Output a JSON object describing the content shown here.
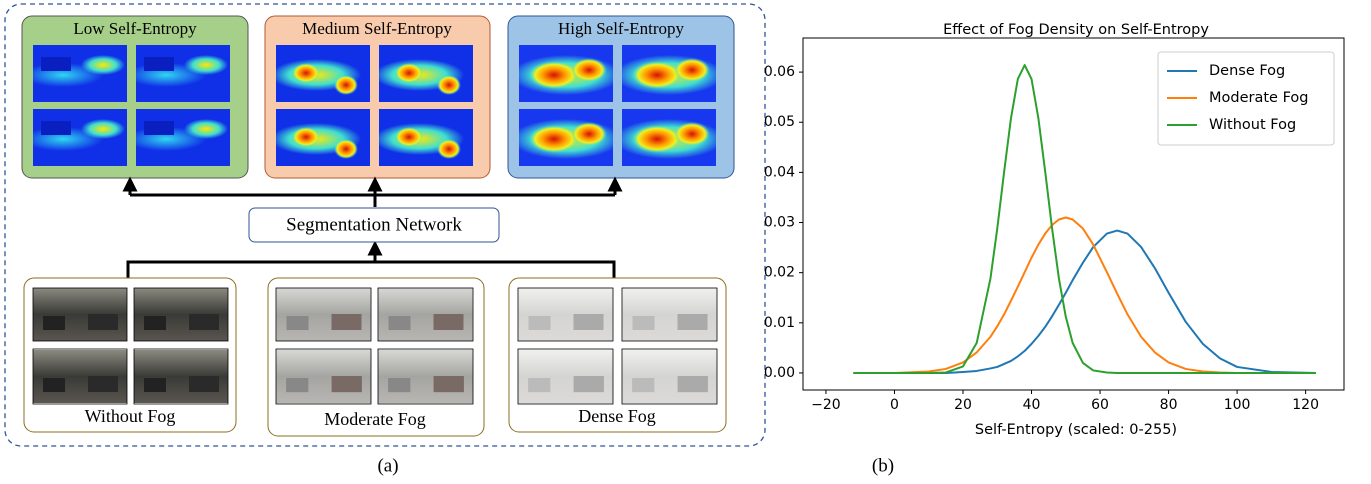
{
  "diagram": {
    "panels": [
      "Low Self-Entropy",
      "Medium Self-Entropy",
      "High Self-Entropy"
    ],
    "network": "Segmentation Network",
    "inputs": [
      "Without Fog",
      "Moderate Fog",
      "Dense Fog"
    ],
    "caption": "(a)"
  },
  "chart_data": {
    "type": "line",
    "title": "Effect of Fog Density on Self-Entropy",
    "xlabel": "Self-Entropy (scaled: 0-255)",
    "caption": "(b)",
    "x": [
      -12,
      0,
      10,
      15,
      20,
      24,
      28,
      30,
      32,
      34,
      36,
      38,
      40,
      42,
      44,
      46,
      48,
      50,
      52,
      55,
      58,
      62,
      65,
      68,
      72,
      76,
      80,
      85,
      90,
      95,
      100,
      110,
      123
    ],
    "series": [
      {
        "name": "Dense Fog",
        "color": "#1f77b4",
        "values": [
          0,
          0,
          0,
          0,
          0.0002,
          0.0004,
          0.0009,
          0.0012,
          0.0018,
          0.0024,
          0.0033,
          0.0044,
          0.0058,
          0.0074,
          0.0092,
          0.0113,
          0.0136,
          0.016,
          0.0185,
          0.022,
          0.0251,
          0.0278,
          0.0284,
          0.0278,
          0.0251,
          0.0209,
          0.016,
          0.0102,
          0.0058,
          0.0029,
          0.0012,
          0.0002,
          0
        ]
      },
      {
        "name": "Moderate Fog",
        "color": "#ff7f0e",
        "values": [
          0,
          0,
          0.0003,
          0.0008,
          0.0021,
          0.0041,
          0.0072,
          0.0093,
          0.0117,
          0.0144,
          0.0172,
          0.0201,
          0.023,
          0.0256,
          0.0278,
          0.0295,
          0.0306,
          0.031,
          0.0306,
          0.0288,
          0.0256,
          0.0201,
          0.0158,
          0.0117,
          0.0072,
          0.0041,
          0.0021,
          0.0008,
          0.0003,
          0.0001,
          0,
          0,
          0
        ]
      },
      {
        "name": "Without Fog",
        "color": "#2ca02c",
        "values": [
          0,
          0,
          0,
          0.0001,
          0.0013,
          0.006,
          0.0188,
          0.0288,
          0.0401,
          0.0508,
          0.0586,
          0.0614,
          0.0586,
          0.0508,
          0.0401,
          0.0288,
          0.0188,
          0.0112,
          0.006,
          0.002,
          0.0005,
          0.0001,
          0,
          0,
          0,
          0,
          0,
          0,
          0,
          0,
          0,
          0,
          0
        ]
      }
    ],
    "xlim": [
      -26.7,
      131.2
    ],
    "ylim": [
      -0.0034,
      0.0668
    ],
    "xticks": [
      {
        "value": -20,
        "label": "−20"
      },
      0,
      20,
      40,
      60,
      80,
      100,
      120
    ],
    "yticks": [
      {
        "value": 0,
        "label": "0.00"
      },
      {
        "value": 0.01,
        "label": "0.01"
      },
      {
        "value": 0.02,
        "label": "0.02"
      },
      {
        "value": 0.03,
        "label": "0.03"
      },
      {
        "value": 0.04,
        "label": "0.04"
      },
      {
        "value": 0.05,
        "label": "0.05"
      },
      {
        "value": 0.06,
        "label": "0.06"
      }
    ],
    "grid": false,
    "legend": "upper right"
  }
}
